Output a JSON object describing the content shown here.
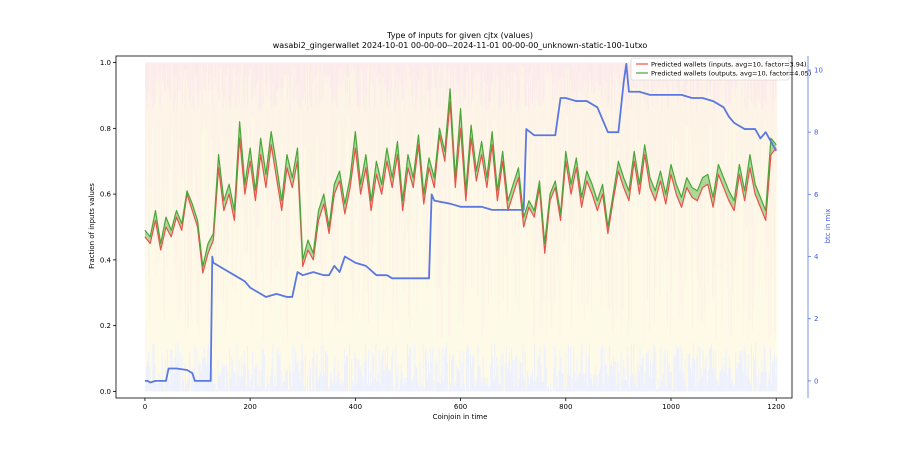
{
  "chart_data": {
    "type": "line",
    "title": "Type of inputs for given cjtx (values)",
    "subtitle": "wasabi2_gingerwallet 2024-10-01 00-00-00--2024-11-01 00-00-00_unknown-static-100-1utxo",
    "xlabel": "Coinjoin in time",
    "ylabel": "Fraction of inputs values",
    "ylabel_right": "btc in mix",
    "xlim": [
      -55,
      1230
    ],
    "ylim": [
      -0.02,
      1.02
    ],
    "ylim_right": [
      -0.55,
      10.45
    ],
    "x_ticks": [
      0,
      200,
      400,
      600,
      800,
      1000,
      1200
    ],
    "x_tick_labels": [
      "0",
      "200",
      "400",
      "600",
      "800",
      "1000",
      "1200"
    ],
    "y_ticks": [
      0.0,
      0.2,
      0.4,
      0.6,
      0.8,
      1.0
    ],
    "y_tick_labels": [
      "0.0",
      "0.2",
      "0.4",
      "0.6",
      "0.8",
      "1.0"
    ],
    "y_ticks_right": [
      0,
      2,
      4,
      6,
      8,
      10
    ],
    "y_tick_labels_right": [
      "0",
      "2",
      "4",
      "6",
      "8",
      "10"
    ],
    "grid": false,
    "legend_position": "top-right",
    "colors": {
      "inputs": "#e8524a",
      "outputs": "#4aa53a",
      "fill": "#6cbf5a",
      "btc": "#5b78e0",
      "background_bars_a": "#f5c5c5",
      "background_bars_b": "#f8d9a8",
      "background_bars_c": "#fbeeb0",
      "background_bars_d": "#cfd6f5"
    },
    "series": [
      {
        "name": "Predicted wallets (inputs, avg=10, factor=3.94)",
        "x": [
          0,
          10,
          20,
          30,
          40,
          50,
          60,
          70,
          80,
          90,
          100,
          110,
          120,
          130,
          140,
          150,
          160,
          170,
          180,
          190,
          200,
          210,
          220,
          230,
          240,
          250,
          260,
          270,
          280,
          290,
          300,
          310,
          320,
          330,
          340,
          350,
          360,
          370,
          380,
          390,
          400,
          410,
          420,
          430,
          440,
          450,
          460,
          470,
          480,
          490,
          500,
          510,
          520,
          530,
          540,
          550,
          560,
          570,
          580,
          590,
          600,
          610,
          620,
          630,
          640,
          650,
          660,
          670,
          680,
          690,
          700,
          710,
          720,
          730,
          740,
          750,
          760,
          770,
          780,
          790,
          800,
          810,
          820,
          830,
          840,
          850,
          860,
          870,
          880,
          890,
          900,
          910,
          920,
          930,
          940,
          950,
          960,
          970,
          980,
          990,
          1000,
          1010,
          1020,
          1030,
          1040,
          1050,
          1060,
          1070,
          1080,
          1090,
          1100,
          1110,
          1120,
          1130,
          1140,
          1150,
          1160,
          1170,
          1180,
          1190,
          1200
        ],
        "values": [
          0.47,
          0.45,
          0.52,
          0.43,
          0.5,
          0.47,
          0.53,
          0.49,
          0.6,
          0.55,
          0.5,
          0.36,
          0.42,
          0.46,
          0.68,
          0.55,
          0.6,
          0.52,
          0.77,
          0.6,
          0.7,
          0.58,
          0.72,
          0.62,
          0.75,
          0.65,
          0.55,
          0.68,
          0.62,
          0.7,
          0.38,
          0.43,
          0.4,
          0.52,
          0.57,
          0.48,
          0.6,
          0.64,
          0.54,
          0.62,
          0.74,
          0.6,
          0.68,
          0.55,
          0.66,
          0.6,
          0.7,
          0.62,
          0.72,
          0.55,
          0.68,
          0.62,
          0.75,
          0.57,
          0.68,
          0.62,
          0.78,
          0.7,
          0.88,
          0.62,
          0.8,
          0.58,
          0.77,
          0.64,
          0.72,
          0.62,
          0.75,
          0.58,
          0.7,
          0.55,
          0.6,
          0.65,
          0.5,
          0.56,
          0.53,
          0.62,
          0.42,
          0.58,
          0.62,
          0.52,
          0.7,
          0.6,
          0.68,
          0.56,
          0.64,
          0.6,
          0.55,
          0.6,
          0.48,
          0.58,
          0.67,
          0.62,
          0.58,
          0.7,
          0.6,
          0.72,
          0.62,
          0.58,
          0.64,
          0.57,
          0.66,
          0.6,
          0.56,
          0.62,
          0.59,
          0.58,
          0.62,
          0.63,
          0.56,
          0.66,
          0.62,
          0.58,
          0.55,
          0.66,
          0.58,
          0.68,
          0.6,
          0.56,
          0.52,
          0.72,
          0.74
        ]
      },
      {
        "name": "Predicted wallets (outputs, avg=10, factor=4.05)",
        "x": [
          0,
          10,
          20,
          30,
          40,
          50,
          60,
          70,
          80,
          90,
          100,
          110,
          120,
          130,
          140,
          150,
          160,
          170,
          180,
          190,
          200,
          210,
          220,
          230,
          240,
          250,
          260,
          270,
          280,
          290,
          300,
          310,
          320,
          330,
          340,
          350,
          360,
          370,
          380,
          390,
          400,
          410,
          420,
          430,
          440,
          450,
          460,
          470,
          480,
          490,
          500,
          510,
          520,
          530,
          540,
          550,
          560,
          570,
          580,
          590,
          600,
          610,
          620,
          630,
          640,
          650,
          660,
          670,
          680,
          690,
          700,
          710,
          720,
          730,
          740,
          750,
          760,
          770,
          780,
          790,
          800,
          810,
          820,
          830,
          840,
          850,
          860,
          870,
          880,
          890,
          900,
          910,
          920,
          930,
          940,
          950,
          960,
          970,
          980,
          990,
          1000,
          1010,
          1020,
          1030,
          1040,
          1050,
          1060,
          1070,
          1080,
          1090,
          1100,
          1110,
          1120,
          1130,
          1140,
          1150,
          1160,
          1170,
          1180,
          1190,
          1200
        ],
        "values": [
          0.49,
          0.47,
          0.55,
          0.45,
          0.53,
          0.49,
          0.55,
          0.51,
          0.61,
          0.57,
          0.52,
          0.38,
          0.45,
          0.48,
          0.72,
          0.58,
          0.63,
          0.55,
          0.82,
          0.63,
          0.74,
          0.61,
          0.77,
          0.66,
          0.79,
          0.69,
          0.58,
          0.72,
          0.65,
          0.74,
          0.4,
          0.46,
          0.42,
          0.55,
          0.6,
          0.5,
          0.63,
          0.67,
          0.57,
          0.65,
          0.79,
          0.63,
          0.72,
          0.58,
          0.7,
          0.63,
          0.74,
          0.65,
          0.76,
          0.58,
          0.72,
          0.65,
          0.78,
          0.6,
          0.71,
          0.65,
          0.8,
          0.73,
          0.92,
          0.65,
          0.86,
          0.61,
          0.81,
          0.67,
          0.76,
          0.65,
          0.79,
          0.61,
          0.73,
          0.58,
          0.63,
          0.68,
          0.53,
          0.58,
          0.55,
          0.64,
          0.45,
          0.6,
          0.64,
          0.54,
          0.73,
          0.63,
          0.71,
          0.59,
          0.67,
          0.63,
          0.58,
          0.63,
          0.5,
          0.6,
          0.7,
          0.65,
          0.61,
          0.73,
          0.63,
          0.75,
          0.65,
          0.61,
          0.67,
          0.6,
          0.69,
          0.63,
          0.59,
          0.65,
          0.62,
          0.61,
          0.65,
          0.66,
          0.59,
          0.69,
          0.65,
          0.61,
          0.58,
          0.69,
          0.61,
          0.72,
          0.63,
          0.59,
          0.55,
          0.77,
          0.75
        ]
      },
      {
        "name": "btc in mix",
        "axis": "right",
        "x": [
          0,
          5,
          10,
          20,
          30,
          40,
          45,
          60,
          80,
          90,
          95,
          100,
          110,
          120,
          125,
          128,
          130,
          150,
          170,
          190,
          200,
          210,
          230,
          250,
          270,
          280,
          290,
          300,
          320,
          340,
          350,
          360,
          370,
          380,
          390,
          400,
          420,
          440,
          460,
          470,
          500,
          520,
          540,
          545,
          550,
          580,
          600,
          620,
          640,
          660,
          680,
          700,
          720,
          725,
          740,
          760,
          780,
          790,
          800,
          820,
          840,
          860,
          880,
          900,
          910,
          915,
          920,
          940,
          960,
          980,
          1000,
          1020,
          1040,
          1060,
          1080,
          1100,
          1110,
          1120,
          1140,
          1160,
          1170,
          1180,
          1200
        ],
        "values": [
          0,
          0,
          -0.05,
          0,
          0,
          0,
          0.4,
          0.4,
          0.35,
          0.25,
          0,
          0,
          0,
          0,
          0,
          4.0,
          3.8,
          3.6,
          3.4,
          3.2,
          3.0,
          2.9,
          2.7,
          2.8,
          2.7,
          2.7,
          3.5,
          3.4,
          3.5,
          3.4,
          3.4,
          3.7,
          3.5,
          4.0,
          3.9,
          3.8,
          3.7,
          3.4,
          3.4,
          3.3,
          3.3,
          3.3,
          3.3,
          6.0,
          5.8,
          5.7,
          5.6,
          5.6,
          5.6,
          5.5,
          5.5,
          5.5,
          5.5,
          8.1,
          7.9,
          7.9,
          7.9,
          9.1,
          9.1,
          9.0,
          9.0,
          8.8,
          8.0,
          8.0,
          9.6,
          10.2,
          9.3,
          9.3,
          9.2,
          9.2,
          9.2,
          9.2,
          9.1,
          9.1,
          9.0,
          8.8,
          8.5,
          8.3,
          8.1,
          8.1,
          7.8,
          8.0,
          7.4
        ]
      }
    ]
  }
}
